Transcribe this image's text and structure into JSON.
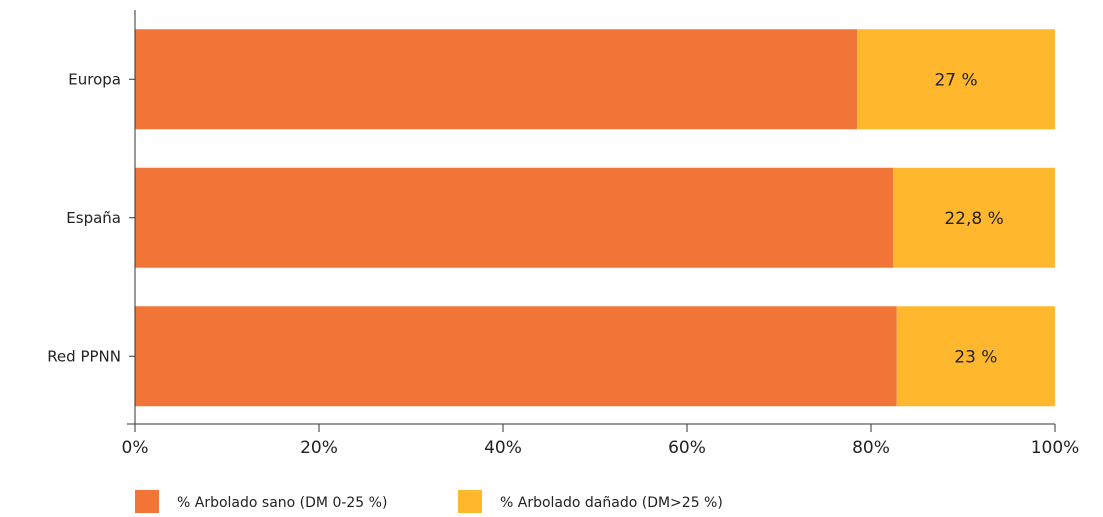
{
  "chart_data": {
    "type": "bar",
    "orientation": "horizontal",
    "stacked": true,
    "percent_stacked": true,
    "categories": [
      "Europa",
      "España",
      "Red PPNN"
    ],
    "series": [
      {
        "name": "% Arbolado sano (DM 0-25 %)",
        "color": "#F07537",
        "values": [
          78.5,
          82.4,
          82.8
        ]
      },
      {
        "name": "% Arbolado dañado (DM>25 %)",
        "color": "#FFB82E",
        "values": [
          21.5,
          17.6,
          17.2
        ]
      }
    ],
    "data_labels": [
      "27 %",
      "22,8 %",
      "23 %"
    ],
    "xlim": [
      0,
      100
    ],
    "x_ticks": [
      "0%",
      "20%",
      "40%",
      "60%",
      "80%",
      "100%"
    ],
    "grid": false,
    "legend_position": "bottom"
  }
}
